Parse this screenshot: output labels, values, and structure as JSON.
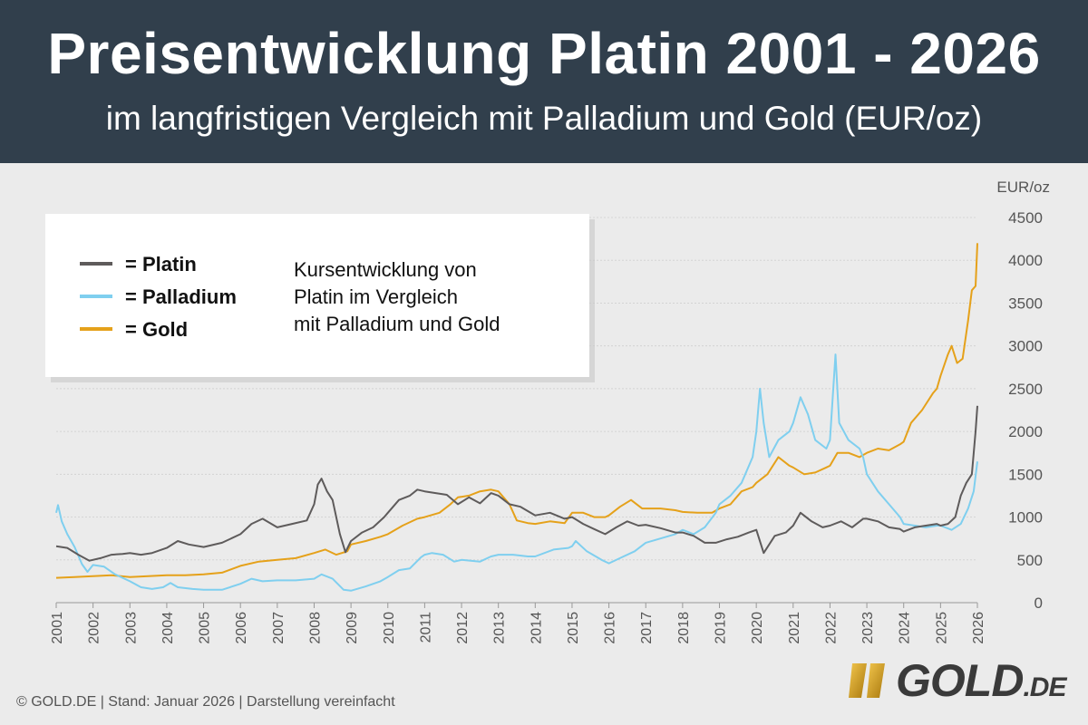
{
  "header": {
    "title": "Preisentwicklung Platin 2001 - 2026",
    "subtitle": "im langfristigen Vergleich mit Palladium und Gold (EUR/oz)"
  },
  "chart_data": {
    "type": "line",
    "title": "Preisentwicklung Platin 2001 - 2026",
    "subtitle": "im langfristigen Vergleich mit Palladium und Gold (EUR/oz)",
    "ylabel": "EUR/oz",
    "xlabel": "",
    "ylim": [
      0,
      4500
    ],
    "xlim": [
      2001,
      2026
    ],
    "yticks": [
      0,
      500,
      1000,
      1500,
      2000,
      2500,
      3000,
      3500,
      4000,
      4500
    ],
    "xticks": [
      "2001",
      "2002",
      "2003",
      "2004",
      "2005",
      "2006",
      "2007",
      "2008",
      "2009",
      "2010",
      "2011",
      "2012",
      "2013",
      "2014",
      "2015",
      "2016",
      "2017",
      "2018",
      "2019",
      "2020",
      "2021",
      "2022",
      "2023",
      "2024",
      "2025",
      "2026"
    ],
    "grid": "horizontal",
    "legend": {
      "placement": "top-left",
      "entries": [
        "= Platin",
        "= Palladium",
        "= Gold"
      ],
      "note": "Kursentwicklung von Platin im Vergleich mit Palladium und Gold"
    },
    "series": [
      {
        "name": "Platin",
        "color": "#5e5b5b",
        "points": [
          [
            2001.0,
            660
          ],
          [
            2001.3,
            640
          ],
          [
            2001.6,
            560
          ],
          [
            2001.9,
            490
          ],
          [
            2002.2,
            520
          ],
          [
            2002.5,
            560
          ],
          [
            2002.8,
            570
          ],
          [
            2003.0,
            580
          ],
          [
            2003.3,
            560
          ],
          [
            2003.6,
            580
          ],
          [
            2004.0,
            640
          ],
          [
            2004.3,
            720
          ],
          [
            2004.6,
            680
          ],
          [
            2005.0,
            650
          ],
          [
            2005.5,
            700
          ],
          [
            2006.0,
            800
          ],
          [
            2006.3,
            920
          ],
          [
            2006.6,
            980
          ],
          [
            2007.0,
            880
          ],
          [
            2007.4,
            920
          ],
          [
            2007.8,
            960
          ],
          [
            2008.0,
            1150
          ],
          [
            2008.1,
            1380
          ],
          [
            2008.2,
            1450
          ],
          [
            2008.35,
            1300
          ],
          [
            2008.5,
            1200
          ],
          [
            2008.7,
            800
          ],
          [
            2008.85,
            590
          ],
          [
            2009.0,
            720
          ],
          [
            2009.3,
            820
          ],
          [
            2009.6,
            880
          ],
          [
            2009.9,
            1000
          ],
          [
            2010.0,
            1050
          ],
          [
            2010.3,
            1200
          ],
          [
            2010.6,
            1250
          ],
          [
            2010.8,
            1320
          ],
          [
            2011.0,
            1300
          ],
          [
            2011.3,
            1280
          ],
          [
            2011.6,
            1260
          ],
          [
            2011.9,
            1150
          ],
          [
            2012.2,
            1230
          ],
          [
            2012.5,
            1160
          ],
          [
            2012.8,
            1280
          ],
          [
            2013.0,
            1250
          ],
          [
            2013.3,
            1150
          ],
          [
            2013.6,
            1120
          ],
          [
            2014.0,
            1020
          ],
          [
            2014.4,
            1050
          ],
          [
            2014.8,
            980
          ],
          [
            2015.0,
            1000
          ],
          [
            2015.3,
            920
          ],
          [
            2015.6,
            860
          ],
          [
            2015.9,
            800
          ],
          [
            2016.2,
            880
          ],
          [
            2016.5,
            950
          ],
          [
            2016.8,
            900
          ],
          [
            2017.0,
            910
          ],
          [
            2017.4,
            870
          ],
          [
            2017.8,
            820
          ],
          [
            2018.0,
            820
          ],
          [
            2018.3,
            780
          ],
          [
            2018.6,
            700
          ],
          [
            2018.9,
            700
          ],
          [
            2019.2,
            740
          ],
          [
            2019.5,
            770
          ],
          [
            2019.8,
            820
          ],
          [
            2020.0,
            850
          ],
          [
            2020.2,
            580
          ],
          [
            2020.5,
            780
          ],
          [
            2020.8,
            820
          ],
          [
            2021.0,
            900
          ],
          [
            2021.2,
            1050
          ],
          [
            2021.5,
            950
          ],
          [
            2021.8,
            880
          ],
          [
            2022.0,
            900
          ],
          [
            2022.3,
            950
          ],
          [
            2022.6,
            880
          ],
          [
            2022.9,
            980
          ],
          [
            2023.0,
            980
          ],
          [
            2023.3,
            950
          ],
          [
            2023.6,
            880
          ],
          [
            2023.9,
            860
          ],
          [
            2024.0,
            830
          ],
          [
            2024.3,
            880
          ],
          [
            2024.6,
            900
          ],
          [
            2024.9,
            920
          ],
          [
            2025.0,
            900
          ],
          [
            2025.2,
            920
          ],
          [
            2025.4,
            1000
          ],
          [
            2025.55,
            1250
          ],
          [
            2025.7,
            1400
          ],
          [
            2025.85,
            1500
          ],
          [
            2025.95,
            2000
          ],
          [
            2026.0,
            2300
          ]
        ]
      },
      {
        "name": "Palladium",
        "color": "#7fcfef",
        "points": [
          [
            2001.0,
            1050
          ],
          [
            2001.05,
            1140
          ],
          [
            2001.15,
            950
          ],
          [
            2001.3,
            800
          ],
          [
            2001.5,
            650
          ],
          [
            2001.7,
            450
          ],
          [
            2001.85,
            360
          ],
          [
            2002.0,
            440
          ],
          [
            2002.3,
            420
          ],
          [
            2002.6,
            330
          ],
          [
            2003.0,
            250
          ],
          [
            2003.3,
            180
          ],
          [
            2003.6,
            160
          ],
          [
            2003.9,
            180
          ],
          [
            2004.1,
            230
          ],
          [
            2004.3,
            180
          ],
          [
            2004.7,
            160
          ],
          [
            2005.0,
            150
          ],
          [
            2005.5,
            150
          ],
          [
            2006.0,
            220
          ],
          [
            2006.3,
            280
          ],
          [
            2006.6,
            250
          ],
          [
            2007.0,
            260
          ],
          [
            2007.5,
            260
          ],
          [
            2008.0,
            280
          ],
          [
            2008.2,
            330
          ],
          [
            2008.5,
            280
          ],
          [
            2008.8,
            150
          ],
          [
            2009.0,
            140
          ],
          [
            2009.4,
            190
          ],
          [
            2009.8,
            250
          ],
          [
            2010.0,
            300
          ],
          [
            2010.3,
            380
          ],
          [
            2010.6,
            400
          ],
          [
            2010.9,
            530
          ],
          [
            2011.0,
            560
          ],
          [
            2011.2,
            580
          ],
          [
            2011.5,
            560
          ],
          [
            2011.8,
            480
          ],
          [
            2012.0,
            500
          ],
          [
            2012.5,
            480
          ],
          [
            2012.8,
            540
          ],
          [
            2013.0,
            560
          ],
          [
            2013.4,
            560
          ],
          [
            2013.8,
            540
          ],
          [
            2014.0,
            540
          ],
          [
            2014.5,
            620
          ],
          [
            2014.9,
            640
          ],
          [
            2015.0,
            660
          ],
          [
            2015.1,
            720
          ],
          [
            2015.4,
            600
          ],
          [
            2015.8,
            500
          ],
          [
            2016.0,
            460
          ],
          [
            2016.3,
            520
          ],
          [
            2016.7,
            600
          ],
          [
            2017.0,
            700
          ],
          [
            2017.4,
            750
          ],
          [
            2017.8,
            800
          ],
          [
            2018.0,
            850
          ],
          [
            2018.3,
            800
          ],
          [
            2018.6,
            880
          ],
          [
            2018.9,
            1050
          ],
          [
            2019.0,
            1150
          ],
          [
            2019.3,
            1250
          ],
          [
            2019.6,
            1400
          ],
          [
            2019.9,
            1700
          ],
          [
            2020.0,
            2000
          ],
          [
            2020.1,
            2500
          ],
          [
            2020.2,
            2100
          ],
          [
            2020.35,
            1700
          ],
          [
            2020.6,
            1900
          ],
          [
            2020.9,
            2000
          ],
          [
            2021.0,
            2100
          ],
          [
            2021.2,
            2400
          ],
          [
            2021.4,
            2200
          ],
          [
            2021.6,
            1900
          ],
          [
            2021.9,
            1800
          ],
          [
            2022.0,
            1900
          ],
          [
            2022.15,
            2900
          ],
          [
            2022.25,
            2100
          ],
          [
            2022.5,
            1900
          ],
          [
            2022.8,
            1800
          ],
          [
            2022.9,
            1700
          ],
          [
            2023.0,
            1500
          ],
          [
            2023.3,
            1300
          ],
          [
            2023.6,
            1150
          ],
          [
            2023.9,
            1000
          ],
          [
            2024.0,
            920
          ],
          [
            2024.3,
            900
          ],
          [
            2024.6,
            880
          ],
          [
            2024.9,
            900
          ],
          [
            2025.0,
            900
          ],
          [
            2025.3,
            850
          ],
          [
            2025.55,
            920
          ],
          [
            2025.75,
            1100
          ],
          [
            2025.9,
            1300
          ],
          [
            2026.0,
            1650
          ]
        ]
      },
      {
        "name": "Gold",
        "color": "#e5a11a",
        "points": [
          [
            2001.0,
            290
          ],
          [
            2001.5,
            300
          ],
          [
            2002.0,
            310
          ],
          [
            2002.5,
            320
          ],
          [
            2003.0,
            300
          ],
          [
            2003.5,
            310
          ],
          [
            2004.0,
            320
          ],
          [
            2004.5,
            320
          ],
          [
            2005.0,
            330
          ],
          [
            2005.5,
            350
          ],
          [
            2006.0,
            430
          ],
          [
            2006.5,
            480
          ],
          [
            2007.0,
            500
          ],
          [
            2007.5,
            520
          ],
          [
            2008.0,
            580
          ],
          [
            2008.3,
            620
          ],
          [
            2008.6,
            560
          ],
          [
            2008.9,
            600
          ],
          [
            2009.0,
            680
          ],
          [
            2009.4,
            720
          ],
          [
            2009.8,
            770
          ],
          [
            2010.0,
            800
          ],
          [
            2010.4,
            900
          ],
          [
            2010.8,
            980
          ],
          [
            2011.0,
            1000
          ],
          [
            2011.4,
            1050
          ],
          [
            2011.7,
            1150
          ],
          [
            2011.9,
            1230
          ],
          [
            2012.2,
            1250
          ],
          [
            2012.5,
            1300
          ],
          [
            2012.8,
            1320
          ],
          [
            2013.0,
            1300
          ],
          [
            2013.3,
            1150
          ],
          [
            2013.5,
            960
          ],
          [
            2013.8,
            930
          ],
          [
            2014.0,
            920
          ],
          [
            2014.4,
            950
          ],
          [
            2014.8,
            930
          ],
          [
            2015.0,
            1050
          ],
          [
            2015.3,
            1050
          ],
          [
            2015.6,
            1000
          ],
          [
            2015.9,
            1000
          ],
          [
            2016.0,
            1020
          ],
          [
            2016.3,
            1120
          ],
          [
            2016.6,
            1200
          ],
          [
            2016.9,
            1100
          ],
          [
            2017.0,
            1100
          ],
          [
            2017.4,
            1100
          ],
          [
            2017.8,
            1080
          ],
          [
            2018.0,
            1060
          ],
          [
            2018.4,
            1050
          ],
          [
            2018.8,
            1050
          ],
          [
            2019.0,
            1100
          ],
          [
            2019.3,
            1150
          ],
          [
            2019.6,
            1300
          ],
          [
            2019.9,
            1350
          ],
          [
            2020.0,
            1400
          ],
          [
            2020.3,
            1500
          ],
          [
            2020.6,
            1700
          ],
          [
            2020.9,
            1600
          ],
          [
            2021.0,
            1580
          ],
          [
            2021.3,
            1500
          ],
          [
            2021.6,
            1520
          ],
          [
            2021.9,
            1580
          ],
          [
            2022.0,
            1600
          ],
          [
            2022.2,
            1750
          ],
          [
            2022.5,
            1750
          ],
          [
            2022.8,
            1700
          ],
          [
            2023.0,
            1750
          ],
          [
            2023.3,
            1800
          ],
          [
            2023.6,
            1780
          ],
          [
            2023.9,
            1850
          ],
          [
            2024.0,
            1880
          ],
          [
            2024.2,
            2100
          ],
          [
            2024.5,
            2250
          ],
          [
            2024.8,
            2450
          ],
          [
            2024.9,
            2500
          ],
          [
            2025.0,
            2650
          ],
          [
            2025.2,
            2900
          ],
          [
            2025.3,
            3000
          ],
          [
            2025.45,
            2800
          ],
          [
            2025.6,
            2850
          ],
          [
            2025.75,
            3300
          ],
          [
            2025.85,
            3650
          ],
          [
            2025.95,
            3700
          ],
          [
            2026.0,
            4200
          ]
        ]
      }
    ]
  },
  "footer": {
    "text": "© GOLD.DE  |  Stand: Januar 2026  |  Darstellung vereinfacht"
  },
  "logo": {
    "text": "GOLD",
    "suffix": ".DE"
  }
}
